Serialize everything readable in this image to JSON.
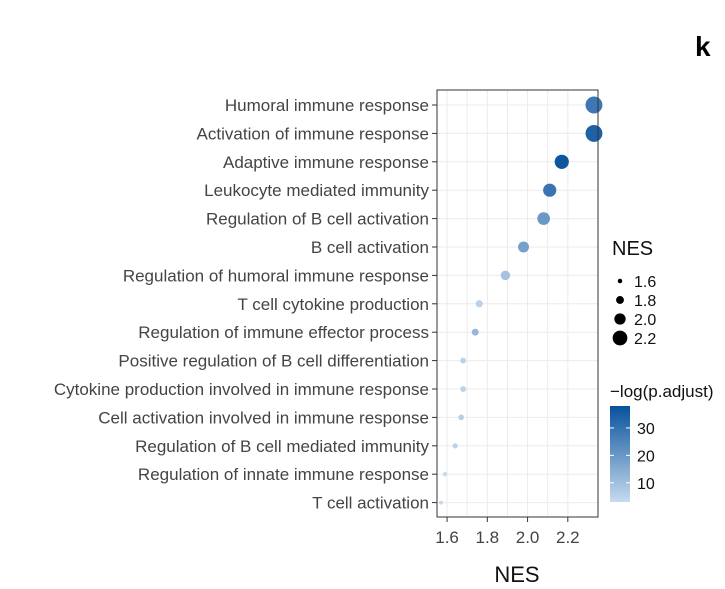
{
  "panel_letter": "k",
  "chart_data": {
    "type": "scatter",
    "xlabel": "NES",
    "xlim": [
      1.55,
      2.35
    ],
    "xticks": [
      {
        "value": 1.6,
        "label": "1.6"
      },
      {
        "value": 1.8,
        "label": "1.8"
      },
      {
        "value": 2.0,
        "label": "2.0"
      },
      {
        "value": 2.2,
        "label": "2.2"
      }
    ],
    "grid": true,
    "categories": [
      "Humoral immune response",
      "Activation of immune response",
      "Adaptive immune response",
      "Leukocyte mediated immunity",
      "Regulation of B cell activation",
      "B cell activation",
      "Regulation of humoral immune response",
      "T cell cytokine production",
      "Regulation of immune effector process",
      "Positive regulation of B cell differentiation",
      "Cytokine production involved in immune response",
      "Cell activation involved in immune response",
      "Regulation of B cell mediated immunity",
      "Regulation of innate immune response",
      "T cell activation"
    ],
    "points": [
      {
        "term": "Humoral immune response",
        "nes": 2.33,
        "neglog_padj": 28
      },
      {
        "term": "Activation of immune response",
        "nes": 2.33,
        "neglog_padj": 34
      },
      {
        "term": "Adaptive immune response",
        "nes": 2.17,
        "neglog_padj": 37
      },
      {
        "term": "Leukocyte mediated immunity",
        "nes": 2.11,
        "neglog_padj": 29
      },
      {
        "term": "Regulation of B cell activation",
        "nes": 2.08,
        "neglog_padj": 20
      },
      {
        "term": "B cell activation",
        "nes": 1.98,
        "neglog_padj": 18
      },
      {
        "term": "Regulation of humoral immune response",
        "nes": 1.89,
        "neglog_padj": 9
      },
      {
        "term": "T cell cytokine production",
        "nes": 1.76,
        "neglog_padj": 5
      },
      {
        "term": "Regulation of immune effector process",
        "nes": 1.74,
        "neglog_padj": 12
      },
      {
        "term": "Positive regulation of B cell differentiation",
        "nes": 1.68,
        "neglog_padj": 5
      },
      {
        "term": "Cytokine production involved in immune response",
        "nes": 1.68,
        "neglog_padj": 5
      },
      {
        "term": "Cell activation involved in immune response",
        "nes": 1.67,
        "neglog_padj": 6
      },
      {
        "term": "Regulation of B cell mediated immunity",
        "nes": 1.64,
        "neglog_padj": 5
      },
      {
        "term": "Regulation of innate immune response",
        "nes": 1.59,
        "neglog_padj": 3
      },
      {
        "term": "T cell activation",
        "nes": 1.57,
        "neglog_padj": 3
      }
    ],
    "size_legend": {
      "title": "NES",
      "entries": [
        {
          "value": 1.6,
          "label": "1.6"
        },
        {
          "value": 1.8,
          "label": "1.8"
        },
        {
          "value": 2.0,
          "label": "2.0"
        },
        {
          "value": 2.2,
          "label": "2.2"
        }
      ]
    },
    "color_legend": {
      "title": "−log(p.adjust)",
      "range": [
        3,
        38
      ],
      "low_color": "#c6dbef",
      "high_color": "#08519c",
      "ticks": [
        {
          "value": 10,
          "label": "10"
        },
        {
          "value": 20,
          "label": "20"
        },
        {
          "value": 30,
          "label": "30"
        }
      ]
    }
  }
}
